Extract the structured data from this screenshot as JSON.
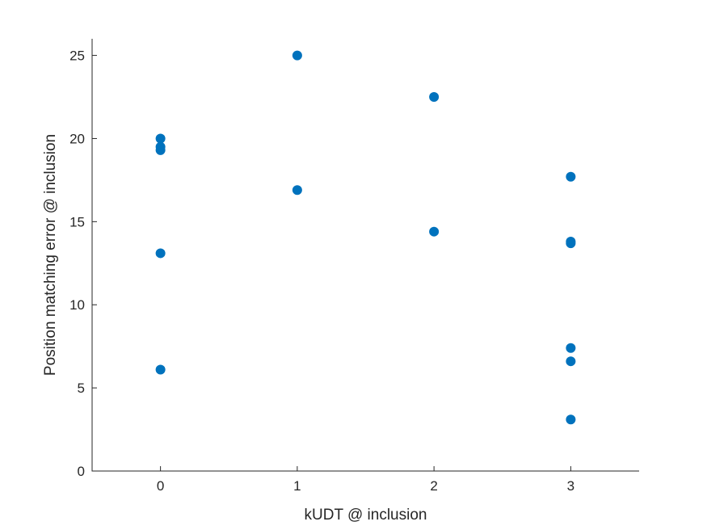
{
  "chart_data": {
    "type": "scatter",
    "xlabel": "kUDT @ inclusion",
    "ylabel": "Position matching error @ inclusion",
    "xlim": [
      -0.5,
      3.5
    ],
    "ylim": [
      0,
      26
    ],
    "xticks": [
      0,
      1,
      2,
      3
    ],
    "yticks": [
      0,
      5,
      10,
      15,
      20,
      25
    ],
    "grid": false,
    "marker_color": "#0072BD",
    "series": [
      {
        "x": [
          0,
          0,
          0,
          0,
          0,
          1,
          1,
          2,
          2,
          3,
          3,
          3,
          3,
          3,
          3
        ],
        "y": [
          20.0,
          19.5,
          19.3,
          13.1,
          6.1,
          25.0,
          16.9,
          22.5,
          14.4,
          17.7,
          13.8,
          13.7,
          7.4,
          6.6,
          3.1
        ]
      }
    ]
  }
}
